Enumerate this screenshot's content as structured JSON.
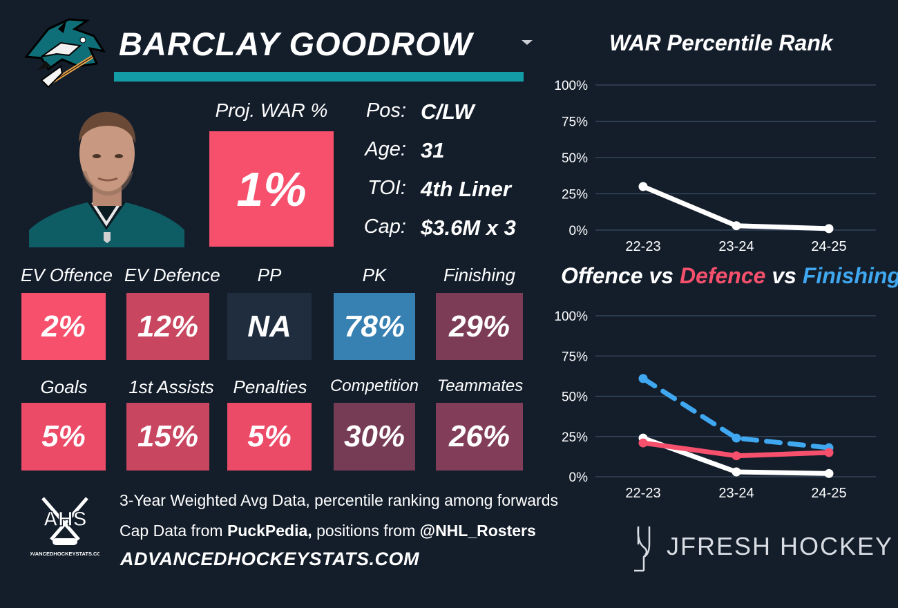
{
  "player": {
    "name": "BARCLAY GOODROW"
  },
  "war": {
    "label": "Proj. WAR %",
    "value": "1%"
  },
  "info": [
    {
      "label": "Pos:",
      "value": "C/LW"
    },
    {
      "label": "Age:",
      "value": "31"
    },
    {
      "label": "TOI:",
      "value": "4th Liner"
    },
    {
      "label": "Cap:",
      "value": "$3.6M x 3"
    }
  ],
  "metrics_row1": [
    {
      "label": "EV Offence",
      "value": "2%",
      "color": "#f6506c"
    },
    {
      "label": "EV Defence",
      "value": "12%",
      "color": "#c84660"
    },
    {
      "label": "PP",
      "value": "NA",
      "color": "#1f2d3f"
    },
    {
      "label": "PK",
      "value": "78%",
      "color": "#3680b2"
    },
    {
      "label": "Finishing",
      "value": "29%",
      "color": "#7c3c55"
    }
  ],
  "metrics_row2": [
    {
      "label": "Goals",
      "value": "5%",
      "color": "#ec4b68"
    },
    {
      "label": "1st Assists",
      "value": "15%",
      "color": "#c84660"
    },
    {
      "label": "Penalties",
      "value": "5%",
      "color": "#ec4b68"
    },
    {
      "label": "Competition",
      "value": "30%",
      "color": "#763c55"
    },
    {
      "label": "Teammates",
      "value": "26%",
      "color": "#823d58"
    }
  ],
  "footer": {
    "line1": "3-Year Weighted Avg Data, percentile ranking among forwards",
    "line2_prefix": "Cap Data from ",
    "line2_source": "PuckPedia,",
    "line2_mid": " positions from ",
    "line2_handle": "@NHL_Rosters",
    "site": "ADVANCEDHOCKEYSTATS.COM",
    "ahs_logo_text": "AHS",
    "ahs_logo_small": "ADVANCEDHOCKEYSTATS.COM"
  },
  "brand": {
    "name": "JFRESH HOCKEY"
  },
  "colors": {
    "teal": "#139ca6",
    "offence": "#ffffff",
    "defence": "#f6506c",
    "finishing": "#3fa8f0",
    "grid": "#3a4b63"
  },
  "chart_data": [
    {
      "type": "line",
      "title": "WAR Percentile Rank",
      "categories": [
        "22-23",
        "23-24",
        "24-25"
      ],
      "yticks": [
        "100%",
        "75%",
        "50%",
        "25%",
        "0%"
      ],
      "ylim": [
        0,
        100
      ],
      "series": [
        {
          "name": "WAR",
          "values": [
            30,
            3,
            1
          ],
          "color": "#ffffff",
          "dashed": false
        }
      ]
    },
    {
      "type": "line",
      "title_parts": [
        {
          "text": "Offence",
          "color": "#ffffff"
        },
        {
          "text": " vs ",
          "color": "#ffffff"
        },
        {
          "text": "Defence",
          "color": "#f6506c"
        },
        {
          "text": " vs ",
          "color": "#ffffff"
        },
        {
          "text": "Finishing",
          "color": "#3fa8f0"
        }
      ],
      "categories": [
        "22-23",
        "23-24",
        "24-25"
      ],
      "yticks": [
        "100%",
        "75%",
        "50%",
        "25%",
        "0%"
      ],
      "ylim": [
        0,
        100
      ],
      "series": [
        {
          "name": "Offence",
          "values": [
            24,
            3,
            2
          ],
          "color": "#ffffff",
          "dashed": false
        },
        {
          "name": "Finishing",
          "values": [
            61,
            24,
            18
          ],
          "color": "#3fa8f0",
          "dashed": true
        },
        {
          "name": "Defence",
          "values": [
            21,
            13,
            15
          ],
          "color": "#f6506c",
          "dashed": false
        }
      ]
    }
  ]
}
